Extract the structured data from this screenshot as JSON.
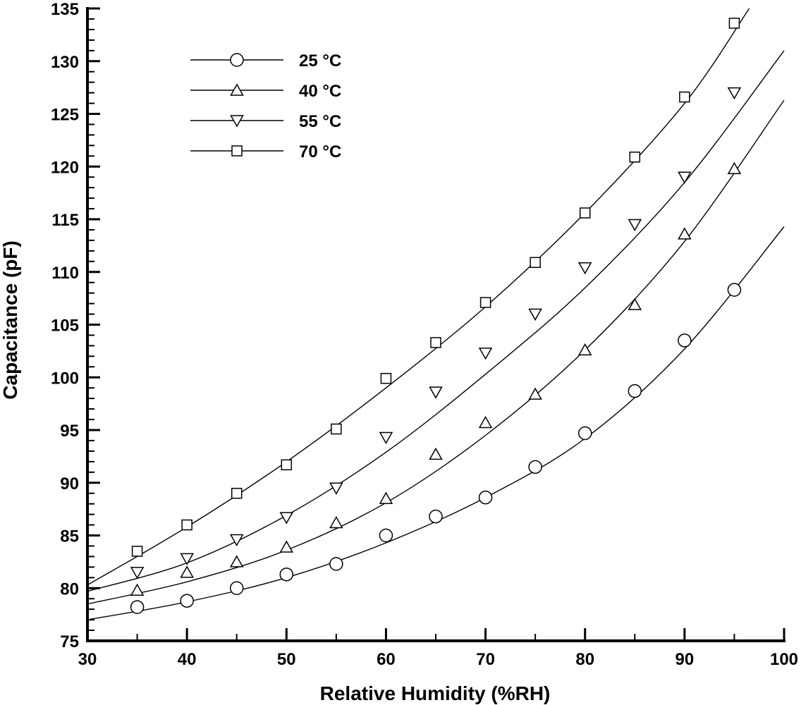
{
  "chart_data": {
    "type": "scatter",
    "title": "",
    "xlabel": "Relative Humidity (%RH)",
    "ylabel": "Capacitance (pF)",
    "xlim": [
      30,
      100
    ],
    "ylim": [
      75,
      135
    ],
    "xticks": [
      30,
      40,
      50,
      60,
      70,
      80,
      90,
      100
    ],
    "yticks": [
      75,
      80,
      85,
      90,
      95,
      100,
      105,
      110,
      115,
      120,
      125,
      130,
      135
    ],
    "grid": false,
    "legend_position": "top-left",
    "x": [
      35,
      40,
      45,
      50,
      55,
      60,
      65,
      70,
      75,
      80,
      85,
      90,
      95
    ],
    "series": [
      {
        "name": "25 °C",
        "marker": "circle",
        "values": [
          78.2,
          78.8,
          80.0,
          81.3,
          82.3,
          85.0,
          86.8,
          88.6,
          91.5,
          94.7,
          98.7,
          103.5,
          108.3
        ],
        "fit": [
          [
            30,
            77.0
          ],
          [
            40,
            78.7
          ],
          [
            50,
            81.0
          ],
          [
            60,
            84.3
          ],
          [
            70,
            88.6
          ],
          [
            80,
            94.2
          ],
          [
            90,
            102.7
          ],
          [
            100,
            114.3
          ]
        ]
      },
      {
        "name": "40 °C",
        "marker": "triangle-up",
        "values": [
          79.8,
          81.5,
          82.5,
          83.9,
          86.2,
          88.5,
          92.7,
          95.7,
          98.4,
          102.6,
          106.9,
          113.6,
          119.8
        ],
        "fit": [
          [
            30,
            78.5
          ],
          [
            40,
            80.6
          ],
          [
            50,
            83.6
          ],
          [
            60,
            88.1
          ],
          [
            70,
            94.5
          ],
          [
            80,
            102.6
          ],
          [
            90,
            112.9
          ],
          [
            100,
            126.3
          ]
        ]
      },
      {
        "name": "55 °C",
        "marker": "triangle-down",
        "values": [
          81.5,
          82.8,
          84.6,
          86.7,
          89.5,
          94.3,
          98.6,
          102.3,
          106.0,
          110.4,
          114.5,
          119.0,
          127.0
        ],
        "fit": [
          [
            30,
            79.7
          ],
          [
            40,
            82.4
          ],
          [
            50,
            86.9
          ],
          [
            60,
            92.9
          ],
          [
            70,
            100.3
          ],
          [
            80,
            108.5
          ],
          [
            90,
            118.5
          ],
          [
            100,
            131.0
          ]
        ]
      },
      {
        "name": "70 °C",
        "marker": "square",
        "values": [
          83.5,
          86.0,
          89.0,
          91.7,
          95.1,
          99.9,
          103.3,
          107.1,
          110.9,
          115.6,
          120.9,
          126.6,
          133.6
        ],
        "fit": [
          [
            30,
            80.3
          ],
          [
            40,
            85.8
          ],
          [
            50,
            92.0
          ],
          [
            60,
            99.0
          ],
          [
            70,
            106.7
          ],
          [
            80,
            115.6
          ],
          [
            90,
            126.0
          ],
          [
            96.5,
            135.0
          ]
        ]
      }
    ]
  }
}
